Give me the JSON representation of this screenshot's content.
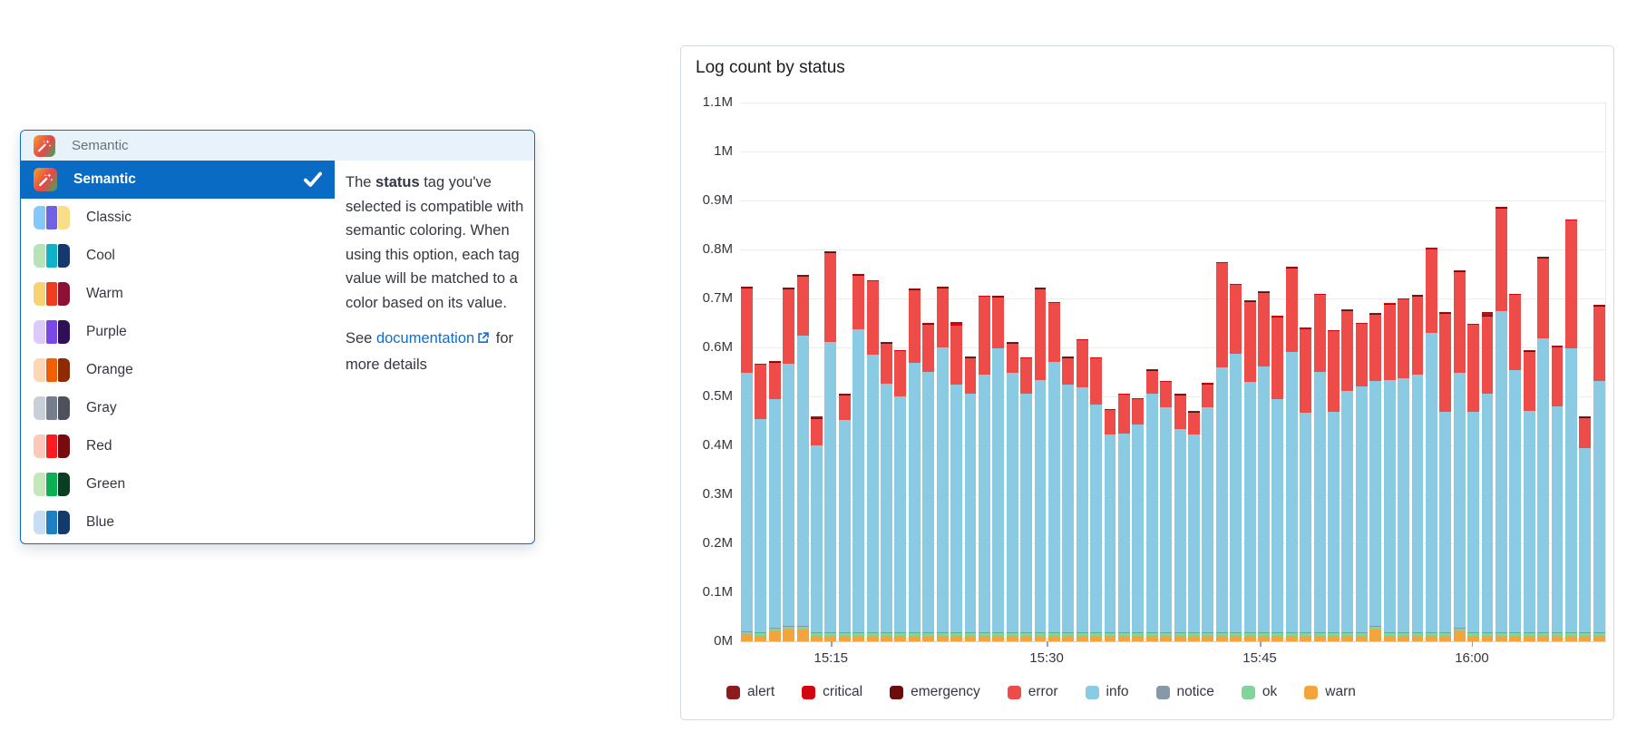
{
  "palette_popup": {
    "header": {
      "label": "Semantic",
      "icon": "magic-wand-badge"
    },
    "items": [
      {
        "label": "Semantic",
        "type": "icon",
        "icon": "magic-wand-badge",
        "selected": true
      },
      {
        "label": "Classic",
        "type": "swatch",
        "colors": [
          "#84c9f9",
          "#6e63e2",
          "#f7de87"
        ]
      },
      {
        "label": "Cool",
        "type": "swatch",
        "colors": [
          "#b7e4b6",
          "#0fb3c9",
          "#16396d"
        ]
      },
      {
        "label": "Warm",
        "type": "swatch",
        "colors": [
          "#f7d271",
          "#f03d20",
          "#8b1137"
        ]
      },
      {
        "label": "Purple",
        "type": "swatch",
        "colors": [
          "#ddc9fc",
          "#7b48e8",
          "#2f0f55"
        ]
      },
      {
        "label": "Orange",
        "type": "swatch",
        "colors": [
          "#fdd6b2",
          "#f06003",
          "#8e2b02"
        ]
      },
      {
        "label": "Gray",
        "type": "swatch",
        "colors": [
          "#c9cfd9",
          "#767e8e",
          "#4d515b"
        ]
      },
      {
        "label": "Red",
        "type": "swatch",
        "colors": [
          "#fcc8ba",
          "#fb1b21",
          "#780b10"
        ]
      },
      {
        "label": "Green",
        "type": "swatch",
        "colors": [
          "#c3e9bb",
          "#0caf53",
          "#0b3d22"
        ]
      },
      {
        "label": "Blue",
        "type": "swatch",
        "colors": [
          "#c6ddf3",
          "#1e7fc2",
          "#123a6d"
        ]
      }
    ],
    "description": {
      "text_before_bold": "The ",
      "bold": "status",
      "text_after_bold": " tag you've selected is compatible with semantic coloring. When using this option, each tag value will be matched to a color based on its value.",
      "see": "See ",
      "link": "documentation",
      "after_link": " for more details"
    }
  },
  "chart_panel": {
    "title": "Log count by status"
  },
  "chart_data": {
    "type": "bar",
    "stacked": true,
    "title": "Log count by status",
    "unit": "millions of logs",
    "ylim": [
      0,
      1.1
    ],
    "grid": "horizontal",
    "legend_position": "bottom",
    "y_ticks": [
      "0M",
      "0.1M",
      "0.2M",
      "0.3M",
      "0.4M",
      "0.5M",
      "0.6M",
      "0.7M",
      "0.8M",
      "0.9M",
      "1M",
      "1.1M"
    ],
    "x_ticks": [
      {
        "label": "15:15",
        "pos": 0.105
      },
      {
        "label": "15:30",
        "pos": 0.354
      },
      {
        "label": "15:45",
        "pos": 0.6
      },
      {
        "label": "16:00",
        "pos": 0.845
      }
    ],
    "stack_order_bottom_to_top": [
      "warn",
      "ok",
      "notice",
      "info",
      "error",
      "emergency",
      "critical",
      "alert"
    ],
    "legend": [
      {
        "name": "alert",
        "color": "#8e1c1c"
      },
      {
        "name": "critical",
        "color": "#d3050f"
      },
      {
        "name": "emergency",
        "color": "#6d0c0c"
      },
      {
        "name": "error",
        "color": "#ee4c48"
      },
      {
        "name": "info",
        "color": "#8bcae3"
      },
      {
        "name": "notice",
        "color": "#8698a9"
      },
      {
        "name": "ok",
        "color": "#7fd59a"
      },
      {
        "name": "warn",
        "color": "#f3a43c"
      }
    ],
    "series": [
      {
        "name": "alert",
        "color": "#8e1c1c",
        "values": [
          0.001,
          0.001,
          0.001,
          0.001,
          0.001,
          0.004,
          0.001,
          0.001,
          0.001,
          0.001,
          0.001,
          0.001,
          0.001,
          0.001,
          0.001,
          0.001,
          0.001,
          0.001,
          0.001,
          0.001,
          0.001,
          0.001,
          0.001,
          0.001,
          0.001,
          0.001,
          0.001,
          0.001,
          0.001,
          0.001,
          0.001,
          0.001,
          0.001,
          0.001,
          0.001,
          0.001,
          0.001,
          0.001,
          0.001,
          0.001,
          0.001,
          0.001,
          0.001,
          0.001,
          0.001,
          0.001,
          0.001,
          0.001,
          0.001,
          0.001,
          0.001,
          0.001,
          0.001,
          0.001,
          0.001,
          0.001,
          0.001,
          0.001,
          0.001,
          0.001,
          0.001,
          0.001
        ]
      },
      {
        "name": "critical",
        "color": "#d3050f",
        "values": [
          0.001,
          0.001,
          0.001,
          0.001,
          0.001,
          0.001,
          0.001,
          0.001,
          0.001,
          0.001,
          0.001,
          0.001,
          0.001,
          0.001,
          0.001,
          0.006,
          0.001,
          0.001,
          0.001,
          0.001,
          0.001,
          0.001,
          0.001,
          0.001,
          0.001,
          0.001,
          0.001,
          0.001,
          0.001,
          0.001,
          0.001,
          0.001,
          0.001,
          0.001,
          0.001,
          0.001,
          0.001,
          0.001,
          0.001,
          0.001,
          0.001,
          0.001,
          0.001,
          0.001,
          0.001,
          0.001,
          0.001,
          0.001,
          0.001,
          0.001,
          0.001,
          0.001,
          0.001,
          0.007,
          0.001,
          0.001,
          0.001,
          0.001,
          0.001,
          0.001,
          0.001,
          0.001
        ]
      },
      {
        "name": "emergency",
        "color": "#6d0c0c",
        "values": [
          0.001,
          0.001,
          0.001,
          0.001,
          0.001,
          0.001,
          0.001,
          0.001,
          0.001,
          0.001,
          0.001,
          0.001,
          0.001,
          0.001,
          0.001,
          0.001,
          0.001,
          0.001,
          0.001,
          0.001,
          0.001,
          0.001,
          0.001,
          0.001,
          0.001,
          0.001,
          0.001,
          0.001,
          0.001,
          0.001,
          0.001,
          0.001,
          0.001,
          0.001,
          0.001,
          0.001,
          0.001,
          0.001,
          0.001,
          0.001,
          0.001,
          0.001,
          0.001,
          0.001,
          0.001,
          0.001,
          0.001,
          0.001,
          0.001,
          0.001,
          0.001,
          0.001,
          0.001,
          0.001,
          0.001,
          0.001,
          0.001,
          0.001,
          0.001,
          0.001,
          0.001,
          0.001
        ]
      },
      {
        "name": "error",
        "color": "#ee4c48",
        "values": [
          0.173,
          0.11,
          0.075,
          0.152,
          0.121,
          0.054,
          0.182,
          0.051,
          0.11,
          0.15,
          0.082,
          0.092,
          0.148,
          0.097,
          0.121,
          0.12,
          0.072,
          0.158,
          0.104,
          0.06,
          0.071,
          0.186,
          0.119,
          0.054,
          0.095,
          0.094,
          0.049,
          0.079,
          0.051,
          0.046,
          0.052,
          0.068,
          0.044,
          0.048,
          0.212,
          0.139,
          0.163,
          0.15,
          0.167,
          0.171,
          0.17,
          0.157,
          0.164,
          0.164,
          0.127,
          0.135,
          0.154,
          0.16,
          0.159,
          0.17,
          0.201,
          0.206,
          0.178,
          0.157,
          0.21,
          0.153,
          0.121,
          0.164,
          0.121,
          0.26,
          0.061,
          0.152
        ]
      },
      {
        "name": "info",
        "color": "#8bcae3",
        "values": [
          0.527,
          0.436,
          0.466,
          0.536,
          0.593,
          0.382,
          0.593,
          0.433,
          0.619,
          0.567,
          0.508,
          0.482,
          0.551,
          0.532,
          0.582,
          0.506,
          0.488,
          0.527,
          0.58,
          0.53,
          0.488,
          0.515,
          0.553,
          0.506,
          0.501,
          0.465,
          0.405,
          0.406,
          0.425,
          0.488,
          0.459,
          0.416,
          0.405,
          0.459,
          0.542,
          0.57,
          0.512,
          0.544,
          0.477,
          0.573,
          0.449,
          0.532,
          0.451,
          0.493,
          0.503,
          0.501,
          0.516,
          0.52,
          0.527,
          0.612,
          0.45,
          0.52,
          0.45,
          0.488,
          0.656,
          0.536,
          0.452,
          0.6,
          0.461,
          0.581,
          0.377,
          0.514
        ]
      },
      {
        "name": "notice",
        "color": "#8698a9",
        "values": [
          0.002,
          0.002,
          0.002,
          0.002,
          0.002,
          0.002,
          0.002,
          0.002,
          0.002,
          0.002,
          0.002,
          0.002,
          0.002,
          0.002,
          0.002,
          0.002,
          0.002,
          0.002,
          0.002,
          0.002,
          0.002,
          0.002,
          0.002,
          0.002,
          0.002,
          0.002,
          0.002,
          0.002,
          0.002,
          0.002,
          0.002,
          0.002,
          0.002,
          0.002,
          0.002,
          0.002,
          0.002,
          0.002,
          0.002,
          0.002,
          0.002,
          0.002,
          0.002,
          0.002,
          0.002,
          0.002,
          0.002,
          0.002,
          0.002,
          0.002,
          0.002,
          0.002,
          0.002,
          0.002,
          0.002,
          0.002,
          0.002,
          0.002,
          0.002,
          0.002,
          0.002,
          0.002
        ]
      },
      {
        "name": "ok",
        "color": "#7fd59a",
        "values": [
          0.004,
          0.004,
          0.004,
          0.004,
          0.004,
          0.004,
          0.004,
          0.004,
          0.004,
          0.004,
          0.004,
          0.004,
          0.004,
          0.004,
          0.004,
          0.004,
          0.004,
          0.004,
          0.004,
          0.004,
          0.004,
          0.004,
          0.004,
          0.004,
          0.004,
          0.004,
          0.004,
          0.004,
          0.004,
          0.004,
          0.004,
          0.004,
          0.004,
          0.004,
          0.004,
          0.004,
          0.004,
          0.004,
          0.004,
          0.004,
          0.004,
          0.004,
          0.004,
          0.004,
          0.004,
          0.004,
          0.004,
          0.004,
          0.004,
          0.004,
          0.004,
          0.004,
          0.004,
          0.004,
          0.004,
          0.004,
          0.004,
          0.004,
          0.004,
          0.004,
          0.004,
          0.004
        ]
      },
      {
        "name": "warn",
        "color": "#f3a43c",
        "values": [
          0.015,
          0.012,
          0.022,
          0.025,
          0.025,
          0.012,
          0.012,
          0.012,
          0.012,
          0.012,
          0.012,
          0.012,
          0.012,
          0.012,
          0.012,
          0.012,
          0.012,
          0.012,
          0.012,
          0.012,
          0.012,
          0.012,
          0.012,
          0.012,
          0.012,
          0.012,
          0.012,
          0.012,
          0.012,
          0.012,
          0.012,
          0.012,
          0.012,
          0.012,
          0.012,
          0.012,
          0.012,
          0.012,
          0.012,
          0.012,
          0.012,
          0.012,
          0.012,
          0.012,
          0.012,
          0.025,
          0.012,
          0.012,
          0.012,
          0.012,
          0.012,
          0.022,
          0.012,
          0.012,
          0.012,
          0.012,
          0.012,
          0.012,
          0.012,
          0.012,
          0.012,
          0.012
        ]
      }
    ]
  }
}
